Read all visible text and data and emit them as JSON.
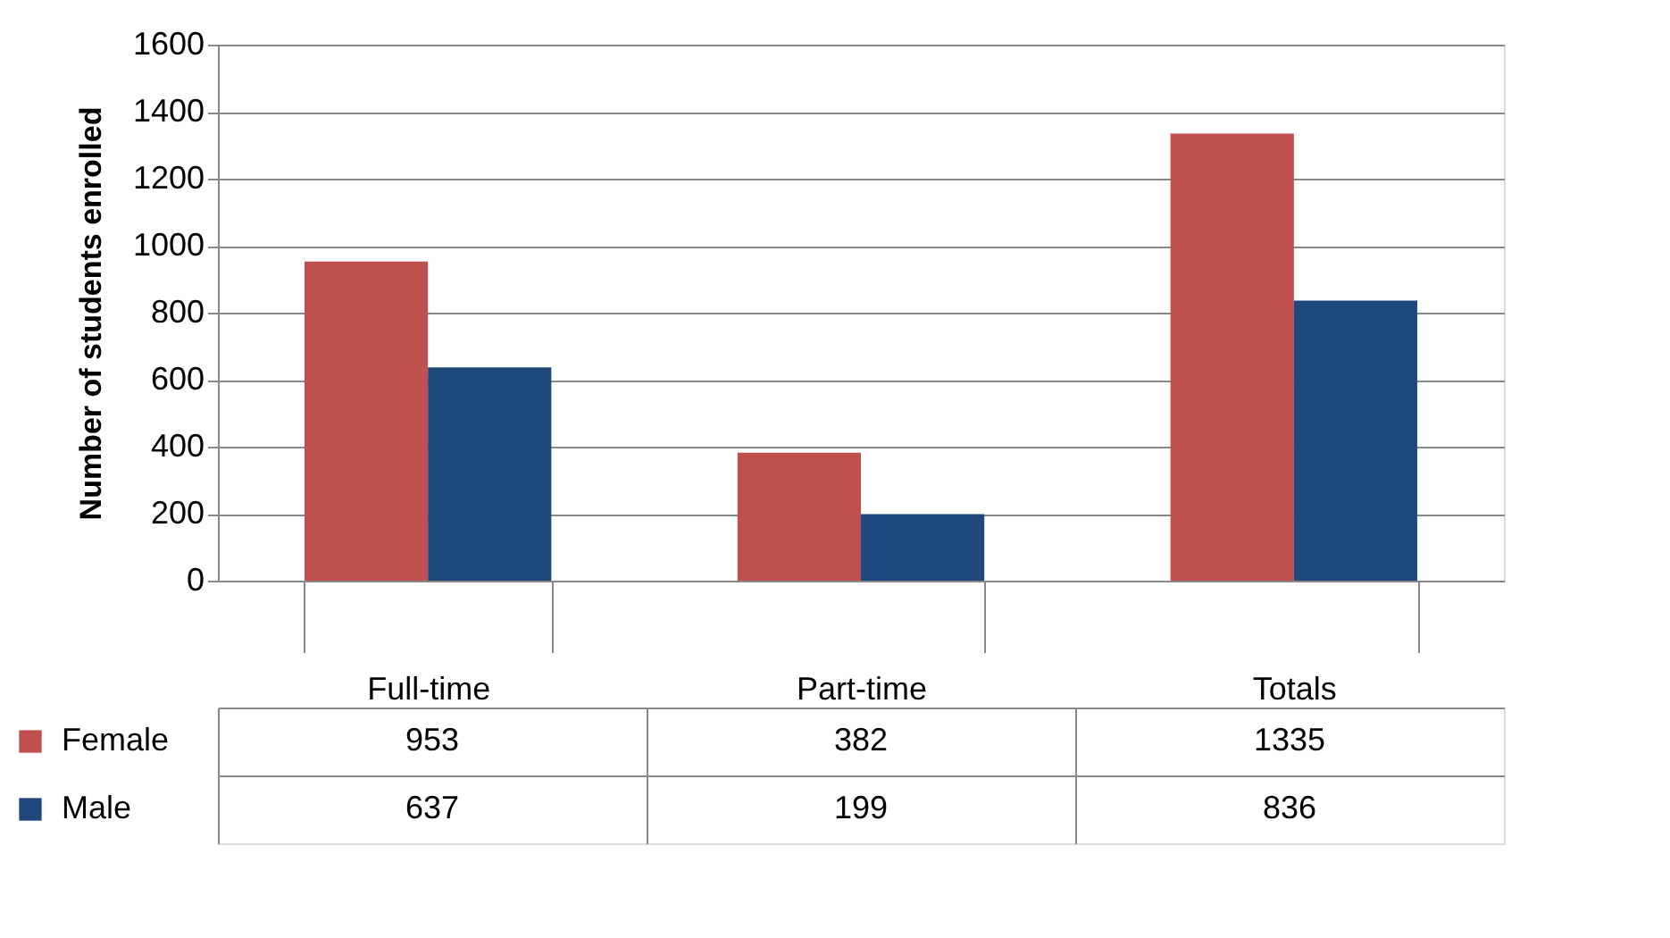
{
  "chart_data": {
    "type": "bar",
    "ylabel": "Number of students enrolled",
    "categories": [
      "Full-time",
      "Part-time",
      "Totals"
    ],
    "series": [
      {
        "name": "Female",
        "color": "#c0504d",
        "values": [
          953,
          382,
          1335
        ]
      },
      {
        "name": "Male",
        "color": "#1f497d",
        "values": [
          637,
          199,
          836
        ]
      }
    ],
    "ylim": [
      0,
      1600
    ],
    "yticks": [
      0,
      200,
      400,
      600,
      800,
      1000,
      1200,
      1400,
      1600
    ],
    "grid": "y",
    "legend": "bottom left",
    "data_labels": true
  }
}
